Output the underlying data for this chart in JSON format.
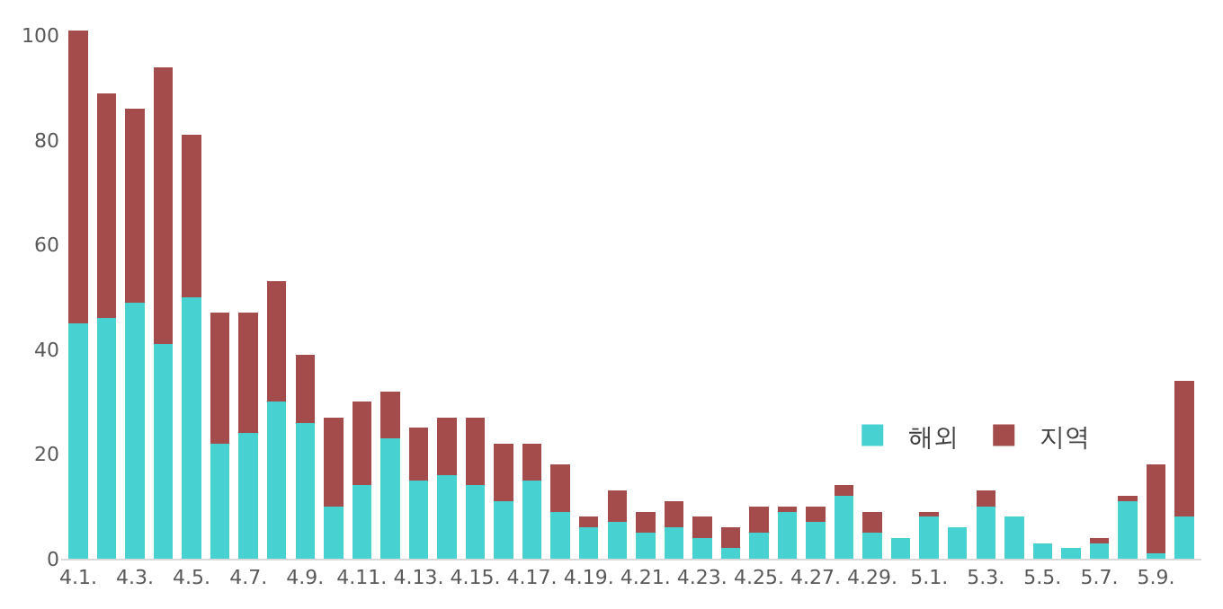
{
  "chart_data": {
    "type": "bar",
    "stacked": true,
    "categories": [
      "4.1.",
      null,
      "4.3.",
      null,
      "4.5.",
      null,
      "4.7.",
      null,
      "4.9.",
      null,
      "4.11.",
      null,
      "4.13.",
      null,
      "4.15.",
      null,
      "4.17.",
      null,
      "4.19.",
      null,
      "4.21.",
      null,
      "4.23.",
      null,
      "4.25.",
      null,
      "4.27.",
      null,
      "4.29.",
      null,
      "5.1.",
      null,
      "5.3.",
      null,
      "5.5.",
      null,
      "5.7.",
      null,
      "5.9.",
      null
    ],
    "series": [
      {
        "name": "해외",
        "color": "#48d1d1",
        "values": [
          45,
          46,
          49,
          41,
          50,
          22,
          24,
          30,
          26,
          10,
          14,
          23,
          15,
          16,
          14,
          11,
          15,
          9,
          6,
          7,
          5,
          6,
          4,
          2,
          5,
          9,
          7,
          12,
          5,
          4,
          8,
          6,
          10,
          8,
          3,
          2,
          3,
          11,
          1,
          8
        ]
      },
      {
        "name": "지역",
        "color": "#a44c4c",
        "values": [
          56,
          43,
          37,
          53,
          31,
          25,
          23,
          23,
          13,
          17,
          16,
          9,
          10,
          11,
          13,
          11,
          7,
          9,
          2,
          6,
          4,
          5,
          4,
          4,
          5,
          1,
          3,
          2,
          4,
          0,
          1,
          0,
          3,
          0,
          0,
          0,
          1,
          1,
          17,
          26
        ]
      }
    ],
    "ylim": [
      0,
      102
    ],
    "yticks": [
      0,
      20,
      40,
      60,
      80,
      100
    ],
    "grid": false,
    "legend": "right"
  }
}
